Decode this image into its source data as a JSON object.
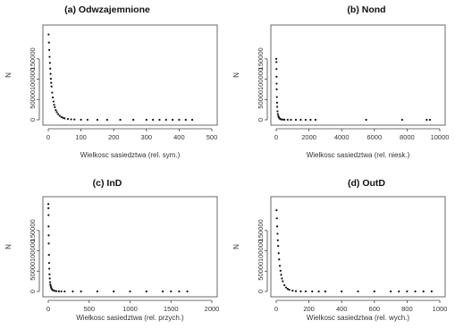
{
  "chart_data": [
    {
      "id": "a",
      "type": "scatter",
      "title": "(a) Odwzajemnione",
      "xlabel": "Wielkosc  sasiedztwa (rel. sym.)",
      "ylabel": "N",
      "xlim": [
        0,
        500
      ],
      "ylim": [
        0,
        220000
      ],
      "xticks": [
        0,
        100,
        200,
        300,
        400,
        500
      ],
      "yticks": [
        0,
        50000,
        100000,
        150000
      ],
      "x": [
        1,
        2,
        3,
        4,
        5,
        6,
        7,
        8,
        9,
        10,
        12,
        14,
        16,
        18,
        20,
        23,
        26,
        30,
        35,
        40,
        45,
        50,
        60,
        70,
        80,
        100,
        120,
        150,
        180,
        220,
        260,
        300,
        320,
        340,
        360,
        380,
        400,
        420,
        440
      ],
      "y": [
        210000,
        190000,
        172000,
        155000,
        140000,
        126000,
        113000,
        101000,
        91000,
        82000,
        67000,
        55000,
        45000,
        37000,
        31000,
        24000,
        19000,
        14000,
        10000,
        7000,
        5000,
        3500,
        2000,
        1200,
        700,
        300,
        150,
        60,
        30,
        15,
        8,
        5,
        3,
        2,
        2,
        1,
        1,
        1,
        1
      ]
    },
    {
      "id": "b",
      "type": "scatter",
      "title": "(b) Nond",
      "xlabel": "Wielkosc  sasiedztwa (rel. niesk.)",
      "ylabel": "N",
      "xlim": [
        0,
        10000
      ],
      "ylim": [
        0,
        220000
      ],
      "xticks": [
        0,
        2000,
        4000,
        6000,
        8000,
        10000
      ],
      "yticks": [
        0,
        50000,
        100000,
        150000
      ],
      "x": [
        5,
        10,
        15,
        20,
        25,
        30,
        40,
        50,
        60,
        80,
        100,
        130,
        160,
        200,
        250,
        300,
        400,
        500,
        700,
        900,
        1200,
        1500,
        1800,
        2100,
        2400,
        5500,
        7700,
        9200,
        9400
      ],
      "y": [
        150000,
        142000,
        125000,
        106000,
        89000,
        75000,
        56000,
        42000,
        32000,
        21000,
        14000,
        9000,
        6000,
        3500,
        2000,
        1200,
        600,
        300,
        150,
        80,
        40,
        20,
        10,
        6,
        3,
        1,
        1,
        1,
        1
      ]
    },
    {
      "id": "c",
      "type": "scatter",
      "title": "(c) InD",
      "xlabel": "Wielkosc  sasiedztwa (rel. przych.)",
      "ylabel": "N",
      "xlim": [
        0,
        2000
      ],
      "ylim": [
        0,
        220000
      ],
      "xticks": [
        0,
        500,
        1000,
        1500,
        2000
      ],
      "yticks": [
        0,
        50000,
        100000,
        150000
      ],
      "x": [
        1,
        2,
        3,
        4,
        5,
        6,
        8,
        10,
        12,
        15,
        18,
        22,
        26,
        30,
        35,
        40,
        50,
        60,
        80,
        100,
        130,
        160,
        200,
        300,
        400,
        600,
        800,
        1000,
        1200,
        1400,
        1500,
        1600,
        1700
      ],
      "y": [
        215000,
        205000,
        188000,
        160000,
        138000,
        118000,
        90000,
        70000,
        56000,
        42000,
        32000,
        23000,
        17000,
        13000,
        9500,
        7000,
        4200,
        2700,
        1300,
        700,
        350,
        180,
        90,
        30,
        12,
        5,
        3,
        2,
        1,
        1,
        1,
        1,
        1
      ]
    },
    {
      "id": "d",
      "type": "scatter",
      "title": "(d) OutD",
      "xlabel": "Wielkosc  sasiedztwa (rel. wych.)",
      "ylabel": "N",
      "xlim": [
        0,
        1000
      ],
      "ylim": [
        0,
        220000
      ],
      "xticks": [
        0,
        200,
        400,
        600,
        800,
        1000
      ],
      "yticks": [
        0,
        50000,
        100000,
        150000
      ],
      "x": [
        2,
        4,
        6,
        8,
        10,
        12,
        15,
        18,
        22,
        26,
        30,
        35,
        40,
        50,
        60,
        70,
        80,
        100,
        120,
        150,
        180,
        220,
        260,
        300,
        400,
        500,
        600,
        700,
        750,
        800,
        850,
        900,
        950
      ],
      "y": [
        200000,
        180000,
        160000,
        142000,
        126000,
        112000,
        94000,
        79000,
        63000,
        51000,
        41000,
        32000,
        25000,
        15500,
        9800,
        6300,
        4100,
        1900,
        900,
        350,
        150,
        60,
        25,
        12,
        4,
        2,
        1,
        1,
        1,
        1,
        1,
        1,
        1
      ]
    }
  ]
}
